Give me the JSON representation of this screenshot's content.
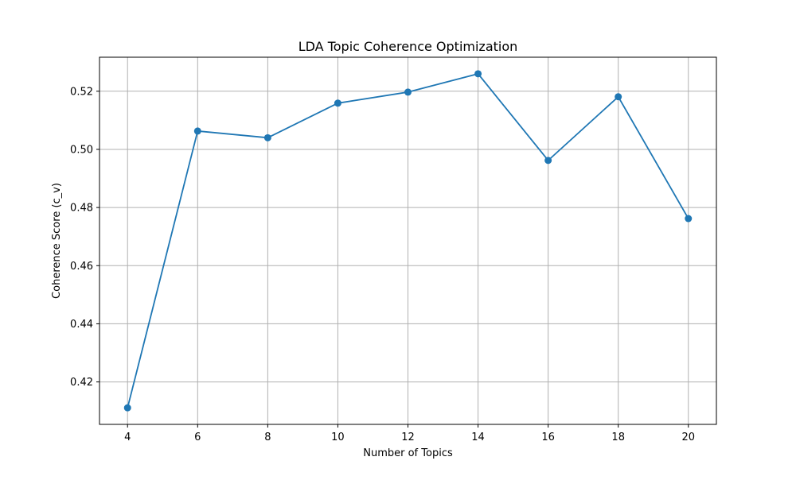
{
  "chart_data": {
    "type": "line",
    "title": "LDA Topic Coherence Optimization",
    "xlabel": "Number of Topics",
    "ylabel": "Coherence Score (c_v)",
    "x": [
      4,
      6,
      8,
      10,
      12,
      14,
      16,
      18,
      20
    ],
    "series": [
      {
        "values": [
          0.4111,
          0.5063,
          0.504,
          0.5159,
          0.5197,
          0.526,
          0.4962,
          0.5181,
          0.4762
        ],
        "color": "#1f77b4",
        "marker": "circle"
      }
    ],
    "xlim": [
      3.2,
      20.8
    ],
    "ylim": [
      0.4054,
      0.5317
    ],
    "xticks": [
      4,
      6,
      8,
      10,
      12,
      14,
      16,
      18,
      20
    ],
    "yticks": [
      0.42,
      0.44,
      0.46,
      0.48,
      0.5,
      0.52
    ],
    "ytick_labels": [
      "0.42",
      "0.44",
      "0.46",
      "0.48",
      "0.50",
      "0.52"
    ],
    "grid": true,
    "grid_color": "#b0b0b0"
  }
}
